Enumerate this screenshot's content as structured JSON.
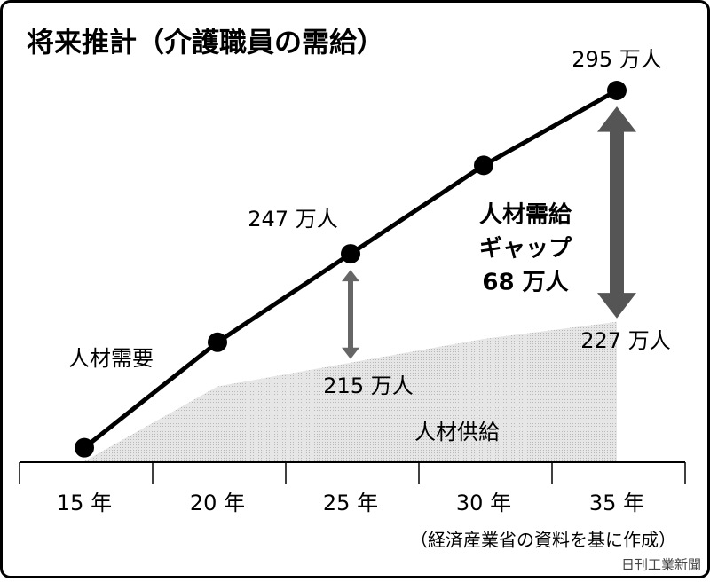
{
  "chart_data": {
    "type": "line",
    "title": "将来推計（介護職員の需給）",
    "categories": [
      "15 年",
      "20 年",
      "25 年",
      "30 年",
      "35 年"
    ],
    "series": [
      {
        "name": "人材需要",
        "color": "#000000",
        "values": [
          190,
          221,
          247,
          273,
          295
        ],
        "value_labels": [
          null,
          null,
          "247 万人",
          null,
          "295 万人"
        ]
      },
      {
        "name": "人材供給",
        "color": "#d9d9d9",
        "fill": "area",
        "values": [
          186,
          208,
          215,
          222,
          227
        ],
        "value_labels": [
          null,
          null,
          "215 万人",
          null,
          "227 万人"
        ]
      }
    ],
    "gap_annotation": [
      "人材需給",
      "ギャップ",
      "68 万人"
    ],
    "source": "（経済産業省の資料を基に作成）",
    "credit": "日刊工業新聞"
  }
}
